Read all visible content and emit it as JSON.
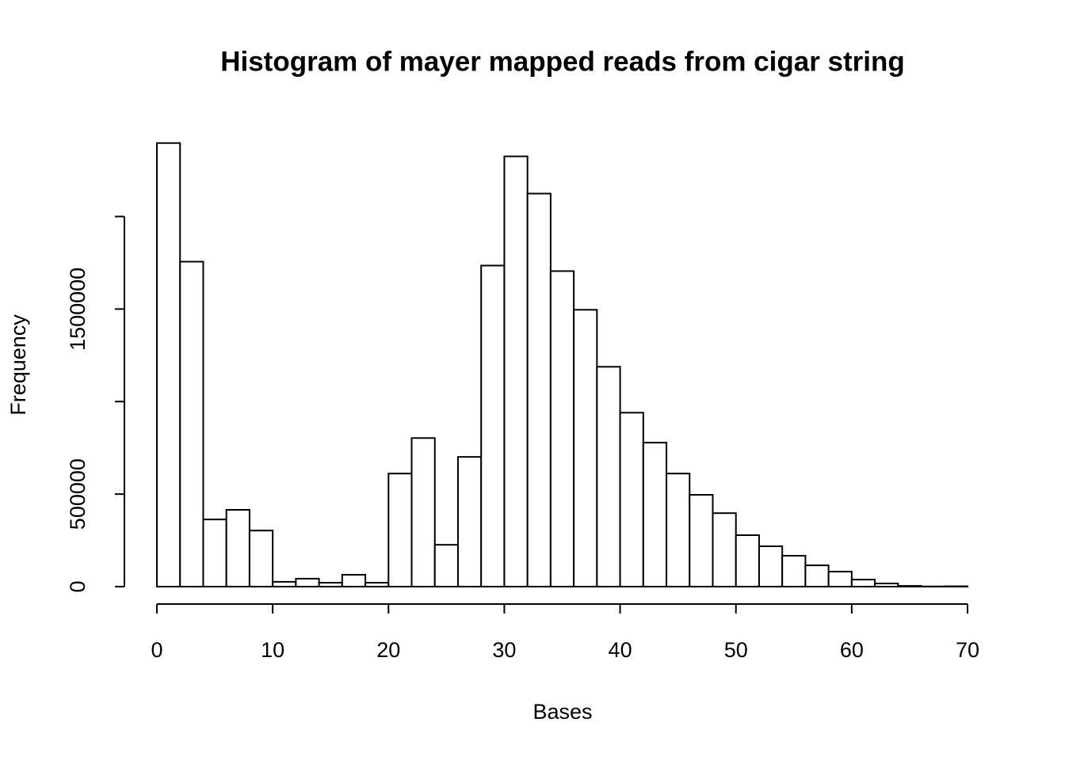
{
  "chart_data": {
    "type": "histogram",
    "title": "Histogram of mayer mapped reads from cigar string",
    "x_label": "Bases",
    "y_label": "Frequency",
    "bins": [
      0,
      2,
      4,
      6,
      8,
      10,
      12,
      14,
      16,
      18,
      20,
      22,
      24,
      26,
      28,
      30,
      32,
      34,
      36,
      38,
      40,
      42,
      44,
      46,
      48,
      50,
      52,
      54,
      56,
      58,
      60,
      62,
      64,
      66,
      68,
      70
    ],
    "values": [
      2397000,
      1756000,
      363000,
      415000,
      303000,
      26000,
      43000,
      21000,
      64000,
      21000,
      611000,
      803000,
      226000,
      701000,
      1735000,
      2325000,
      2124000,
      1705000,
      1496000,
      1188000,
      940000,
      778000,
      611000,
      496000,
      397000,
      278000,
      218000,
      167000,
      115000,
      81000,
      38000,
      17000,
      4000,
      1000,
      2000
    ],
    "color": "#ffffff",
    "edge_color": "#000000",
    "xlim": [
      0,
      70
    ],
    "xticks": [
      0,
      10,
      20,
      30,
      40,
      50,
      60,
      70
    ],
    "ylim": [
      0,
      2400000
    ],
    "yticks": [
      0,
      500000,
      {
        "value": 1000000,
        "label": null
      },
      1500000,
      {
        "value": 2000000,
        "label": null
      }
    ],
    "grid": false
  }
}
